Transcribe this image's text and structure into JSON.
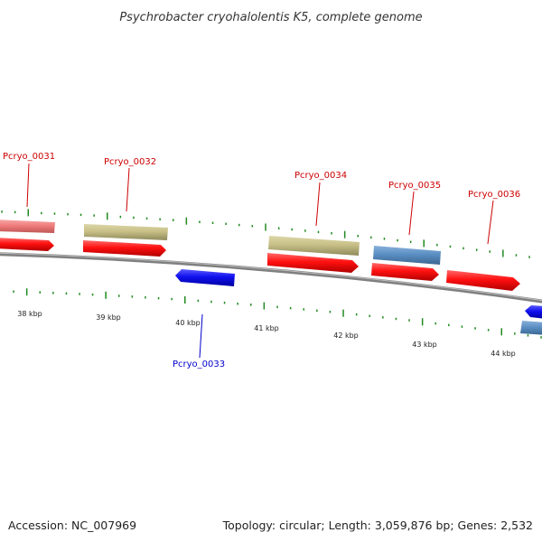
{
  "header": {
    "title": "Psychrobacter cryohalolentis K5, complete genome"
  },
  "footer": {
    "accession": "Accession: NC_007969",
    "summary": "Topology: circular; Length: 3,059,876 bp; Genes: 2,532"
  },
  "colors": {
    "forward_cds": "#ff1010",
    "reverse_cds": "#1010ee",
    "rna_olive": "#c8c087",
    "rna_steel": "#5b8fc4",
    "pseudo_pink": "#f07c7c",
    "tick_green": "#228B22",
    "backbone": "#808080",
    "label_red": "#cc0000",
    "label_blue": "#0000cc"
  },
  "ticks": {
    "labels": [
      "38 kbp",
      "39 kbp",
      "40 kbp",
      "41 kbp",
      "42 kbp",
      "43 kbp",
      "44 kbp"
    ]
  },
  "genes": [
    {
      "id": "Pcryo_0031",
      "strand": "forward",
      "label_color": "#cc0000"
    },
    {
      "id": "Pcryo_0032",
      "strand": "forward",
      "label_color": "#cc0000"
    },
    {
      "id": "Pcryo_0033",
      "strand": "reverse",
      "label_color": "#0000cc"
    },
    {
      "id": "Pcryo_0034",
      "strand": "forward",
      "label_color": "#cc0000"
    },
    {
      "id": "Pcryo_0035",
      "strand": "forward",
      "label_color": "#cc0000"
    },
    {
      "id": "Pcryo_0036",
      "strand": "forward",
      "label_color": "#cc0000"
    }
  ]
}
